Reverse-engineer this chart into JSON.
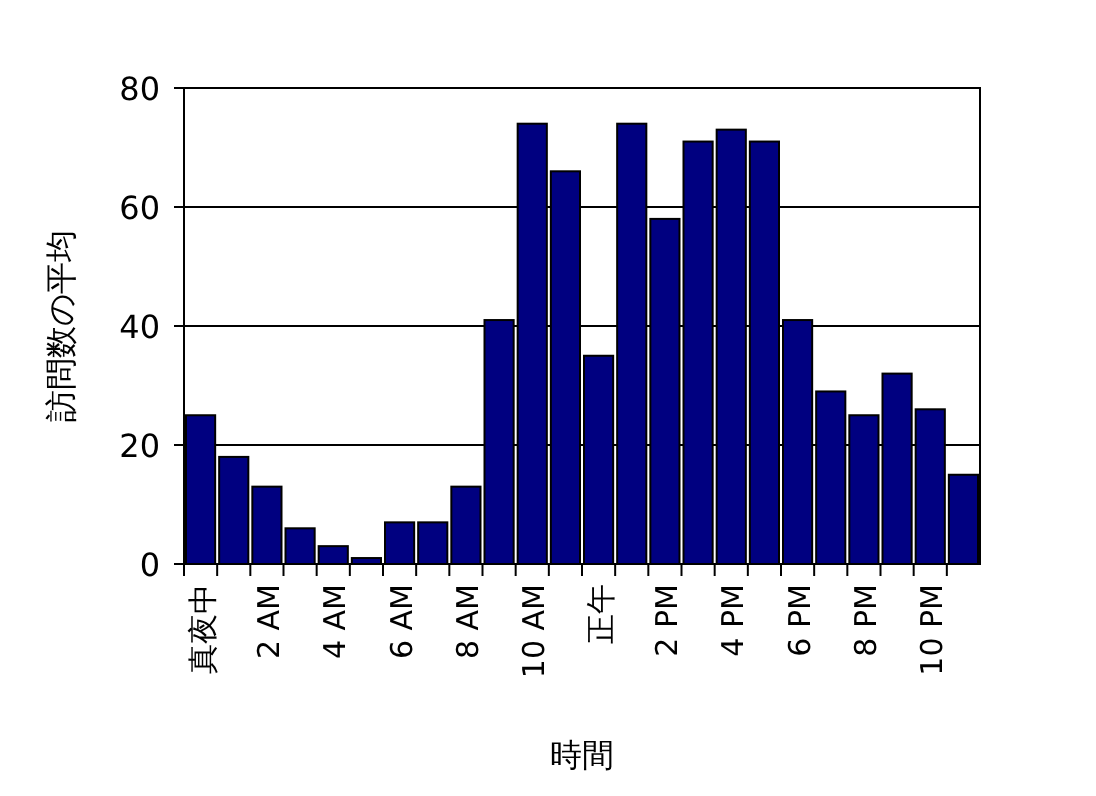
{
  "chart_data": {
    "type": "bar",
    "xlabel": "時間",
    "ylabel": "訪問数の平均",
    "categories": [
      "真夜中",
      null,
      "2 AM",
      null,
      "4 AM",
      null,
      "6 AM",
      null,
      "8 AM",
      null,
      "10 AM",
      null,
      "正午",
      null,
      "2 PM",
      null,
      "4 PM",
      null,
      "6 PM",
      null,
      "8 PM",
      null,
      "10 PM",
      null
    ],
    "series": [
      {
        "color": "#000080",
        "values": [
          25,
          18,
          13,
          6,
          3,
          1,
          7,
          7,
          13,
          41,
          74,
          66,
          35,
          74,
          58,
          71,
          73,
          71,
          41,
          29,
          25,
          32,
          26,
          15
        ]
      }
    ],
    "ylim": [
      0,
      80
    ],
    "yticks": [
      0,
      20,
      40,
      60,
      80
    ],
    "grid": "y"
  }
}
